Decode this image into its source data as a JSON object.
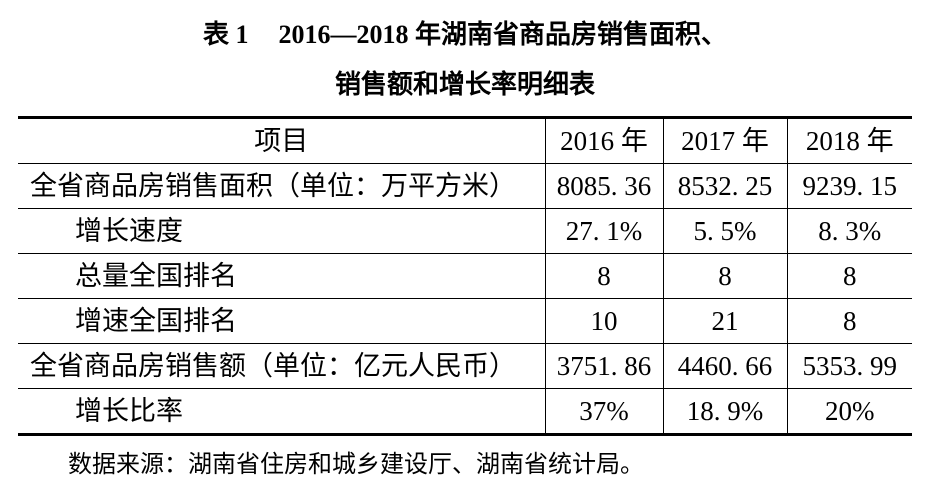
{
  "caption": {
    "label": "表 1",
    "line1": "2016—2018 年湖南省商品房销售面积、",
    "line2": "销售额和增长率明细表"
  },
  "table": {
    "headers": [
      "项目",
      "2016 年",
      "2017 年",
      "2018 年"
    ],
    "rows": [
      {
        "label": "全省商品房销售面积（单位：万平方米）",
        "values": [
          "8085. 36",
          "8532. 25",
          "9239. 15"
        ]
      },
      {
        "label": "增长速度",
        "values": [
          "27. 1%",
          "5. 5%",
          "8. 3%"
        ]
      },
      {
        "label": "总量全国排名",
        "values": [
          "8",
          "8",
          "8"
        ]
      },
      {
        "label": "增速全国排名",
        "values": [
          "10",
          "21",
          "8"
        ]
      },
      {
        "label": "全省商品房销售额（单位：亿元人民币）",
        "values": [
          "3751. 86",
          "4460. 66",
          "5353. 99"
        ]
      },
      {
        "label": "增长比率",
        "values": [
          "37%",
          "18. 9%",
          "20%"
        ]
      }
    ]
  },
  "note": "数据来源：湖南省住房和城乡建设厅、湖南省统计局。"
}
